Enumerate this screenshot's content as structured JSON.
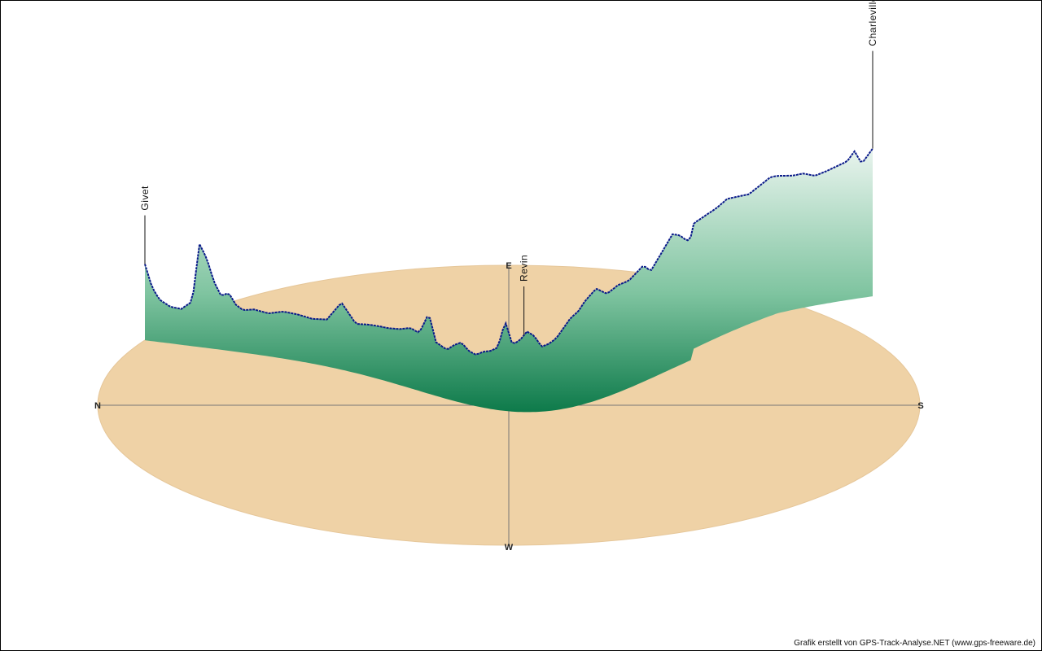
{
  "chart_data": {
    "type": "area",
    "title": "",
    "xlabel": "",
    "ylabel": "",
    "compass": {
      "north": "N",
      "south": "S",
      "east": "E",
      "west": "W"
    },
    "waypoints": [
      {
        "name": "Givet",
        "t": 0.0
      },
      {
        "name": "Revin",
        "t": 0.52
      },
      {
        "name": "Charleville-Mézières",
        "t": 1.0
      }
    ],
    "profile": {
      "t": [
        0.0,
        0.01,
        0.02,
        0.035,
        0.05,
        0.065,
        0.075,
        0.085,
        0.095,
        0.105,
        0.115,
        0.125,
        0.135,
        0.15,
        0.16,
        0.17,
        0.19,
        0.21,
        0.23,
        0.25,
        0.27,
        0.29,
        0.305,
        0.32,
        0.335,
        0.35,
        0.365,
        0.375,
        0.38,
        0.39,
        0.4,
        0.415,
        0.425,
        0.435,
        0.445,
        0.455,
        0.465,
        0.475,
        0.485,
        0.495,
        0.505,
        0.515,
        0.525,
        0.535,
        0.545,
        0.555,
        0.565,
        0.575,
        0.585,
        0.595,
        0.605,
        0.62,
        0.635,
        0.65,
        0.665,
        0.675,
        0.685,
        0.695,
        0.705,
        0.715,
        0.725,
        0.735,
        0.745,
        0.755,
        0.77,
        0.785,
        0.8,
        0.815,
        0.83,
        0.845,
        0.86,
        0.875,
        0.89,
        0.905,
        0.92,
        0.935,
        0.945,
        0.955,
        0.965,
        0.975,
        0.985,
        1.0
      ],
      "elevation": [
        170,
        120,
        95,
        82,
        80,
        100,
        230,
        200,
        150,
        120,
        130,
        105,
        95,
        100,
        98,
        96,
        105,
        104,
        100,
        105,
        150,
        110,
        115,
        118,
        120,
        125,
        135,
        130,
        140,
        180,
        120,
        110,
        125,
        135,
        120,
        115,
        125,
        130,
        140,
        200,
        150,
        160,
        180,
        170,
        145,
        150,
        160,
        180,
        200,
        210,
        230,
        250,
        230,
        240,
        240,
        250,
        260,
        240,
        260,
        280,
        300,
        290,
        270,
        280,
        285,
        290,
        300,
        295,
        290,
        300,
        310,
        305,
        300,
        300,
        290,
        295,
        300,
        305,
        310,
        330,
        300,
        330
      ]
    }
  }
}
